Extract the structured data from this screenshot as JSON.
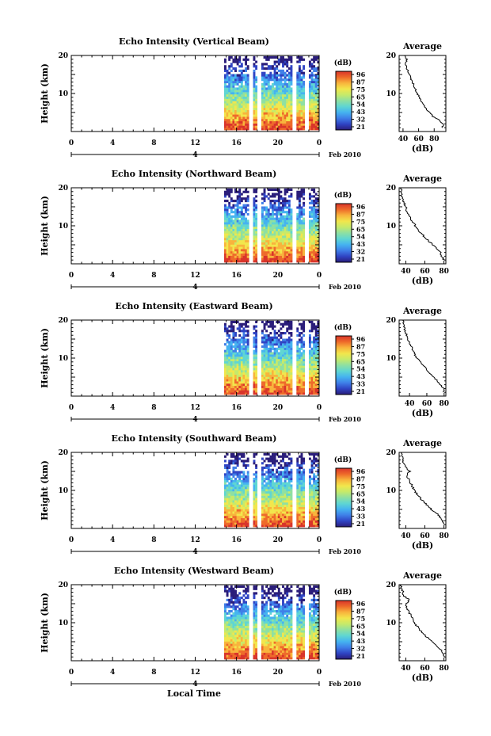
{
  "x_axis": {
    "ticks": [
      "0",
      "4",
      "8",
      "12",
      "16",
      "20",
      "0"
    ],
    "day_label": "4",
    "date_label": "Feb 2010",
    "label": "Local Time"
  },
  "colorbar": {
    "unit": "(dB)",
    "colors": [
      "#2a1d7a",
      "#2f44c4",
      "#3f7fe8",
      "#45b3f0",
      "#5fd6d2",
      "#8ee0a2",
      "#c6ea6a",
      "#f2e64c",
      "#f8b43c",
      "#ee6a2a",
      "#d9342a"
    ]
  },
  "charts": [
    {
      "title": "Echo Intensity (Vertical Beam)",
      "ylabel": "Height (km)",
      "yticks": [
        "20",
        "10"
      ],
      "colorbar_ticks": [
        "96",
        "87",
        "75",
        "65",
        "54",
        "43",
        "32",
        "21"
      ],
      "avg_title": "Average",
      "avg_xlabel": "(dB)",
      "avg_xticks": [
        "40",
        "60",
        "80"
      ],
      "avg_yticks": [
        "20",
        "10"
      ],
      "chart_data": {
        "type": "heatmap",
        "x_range_hours": [
          0,
          24
        ],
        "y_range_km": [
          0,
          20
        ],
        "data_start_hour": 14.8,
        "gaps_hours": [
          [
            17.2,
            17.6
          ],
          [
            18.0,
            18.4
          ],
          [
            21.4,
            21.8
          ],
          [
            22.6,
            23.0
          ]
        ],
        "color_range_db": [
          21,
          96
        ]
      },
      "avg_data": {
        "type": "line",
        "xlim": [
          35,
          95
        ],
        "ylim": [
          0,
          20
        ],
        "height_km": [
          1,
          2,
          3,
          4,
          5,
          6,
          7,
          8,
          9,
          10,
          11,
          12,
          13,
          14,
          15,
          16,
          17,
          18,
          19,
          20
        ],
        "db": [
          90,
          92,
          86,
          78,
          74,
          70,
          66,
          63,
          61,
          58,
          56,
          54,
          52,
          50,
          48,
          46,
          44,
          43,
          45,
          42
        ]
      }
    },
    {
      "title": "Echo Intensity (Northward Beam)",
      "ylabel": "Height (km)",
      "yticks": [
        "20",
        "10"
      ],
      "colorbar_ticks": [
        "96",
        "87",
        "75",
        "65",
        "54",
        "43",
        "32",
        "21"
      ],
      "avg_title": "Average",
      "avg_xlabel": "(dB)",
      "avg_xticks": [
        "40",
        "60",
        "80"
      ],
      "avg_yticks": [
        "20",
        "10"
      ],
      "chart_data": {
        "type": "heatmap",
        "x_range_hours": [
          0,
          24
        ],
        "y_range_km": [
          0,
          20
        ],
        "data_start_hour": 14.8,
        "gaps_hours": [
          [
            17.2,
            17.6
          ],
          [
            18.0,
            18.4
          ],
          [
            21.4,
            21.8
          ],
          [
            22.6,
            23.0
          ]
        ],
        "color_range_db": [
          21,
          96
        ]
      },
      "avg_data": {
        "type": "line",
        "xlim": [
          33,
          82
        ],
        "ylim": [
          0,
          20
        ],
        "height_km": [
          1,
          2,
          3,
          4,
          5,
          6,
          7,
          8,
          9,
          10,
          11,
          12,
          13,
          14,
          15,
          16,
          17,
          18,
          19,
          20
        ],
        "db": [
          80,
          78,
          76,
          72,
          68,
          64,
          60,
          56,
          53,
          50,
          47,
          45,
          43,
          41,
          40,
          38,
          37,
          36,
          35,
          35
        ]
      }
    },
    {
      "title": "Echo Intensity (Eastward Beam)",
      "ylabel": "Height (km)",
      "yticks": [
        "20",
        "10"
      ],
      "colorbar_ticks": [
        "96",
        "87",
        "75",
        "65",
        "54",
        "43",
        "33",
        "21"
      ],
      "avg_title": "Average",
      "avg_xlabel": "(dB)",
      "avg_xticks": [
        "40",
        "60",
        "80"
      ],
      "avg_yticks": [
        "20",
        "10"
      ],
      "chart_data": {
        "type": "heatmap",
        "x_range_hours": [
          0,
          24
        ],
        "y_range_km": [
          0,
          20
        ],
        "data_start_hour": 14.8,
        "gaps_hours": [
          [
            17.2,
            17.6
          ],
          [
            18.0,
            18.4
          ],
          [
            21.4,
            21.8
          ],
          [
            22.6,
            23.0
          ]
        ],
        "color_range_db": [
          21,
          96
        ]
      },
      "avg_data": {
        "type": "line",
        "xlim": [
          28,
          82
        ],
        "ylim": [
          0,
          20
        ],
        "height_km": [
          1,
          2,
          3,
          4,
          5,
          6,
          7,
          8,
          9,
          10,
          11,
          12,
          13,
          14,
          15,
          16,
          17,
          18,
          19,
          20
        ],
        "db": [
          80,
          79,
          76,
          72,
          68,
          64,
          60,
          56,
          52,
          49,
          46,
          44,
          42,
          40,
          38,
          37,
          35,
          34,
          33,
          32
        ]
      }
    },
    {
      "title": "Echo Intensity (Southward Beam)",
      "ylabel": "Height (km)",
      "yticks": [
        "20",
        "10"
      ],
      "colorbar_ticks": [
        "96",
        "87",
        "75",
        "65",
        "54",
        "43",
        "33",
        "21"
      ],
      "avg_title": "Average",
      "avg_xlabel": "(dB)",
      "avg_xticks": [
        "40",
        "60",
        "80"
      ],
      "avg_yticks": [
        "20",
        "10"
      ],
      "chart_data": {
        "type": "heatmap",
        "x_range_hours": [
          0,
          24
        ],
        "y_range_km": [
          0,
          20
        ],
        "data_start_hour": 14.8,
        "gaps_hours": [
          [
            17.2,
            17.6
          ],
          [
            18.0,
            18.4
          ],
          [
            21.4,
            21.8
          ],
          [
            22.6,
            23.0
          ]
        ],
        "color_range_db": [
          21,
          96
        ]
      },
      "avg_data": {
        "type": "line",
        "xlim": [
          33,
          82
        ],
        "ylim": [
          0,
          20
        ],
        "height_km": [
          1,
          2,
          3,
          4,
          5,
          6,
          7,
          8,
          9,
          10,
          11,
          12,
          13,
          14,
          15,
          16,
          17,
          18,
          19,
          20
        ],
        "db": [
          80,
          79,
          76,
          72,
          67,
          63,
          59,
          55,
          52,
          49,
          47,
          45,
          43,
          41,
          44,
          40,
          38,
          37,
          36,
          35
        ]
      }
    },
    {
      "title": "Echo Intensity (Westward Beam)",
      "ylabel": "Height (km)",
      "yticks": [
        "20",
        "10"
      ],
      "colorbar_ticks": [
        "96",
        "87",
        "75",
        "65",
        "54",
        "43",
        "32",
        "21"
      ],
      "avg_title": "Average",
      "avg_xlabel": "(dB)",
      "avg_xticks": [
        "40",
        "60",
        "80"
      ],
      "avg_yticks": [
        "20",
        "10"
      ],
      "chart_data": {
        "type": "heatmap",
        "x_range_hours": [
          0,
          24
        ],
        "y_range_km": [
          0,
          20
        ],
        "data_start_hour": 14.8,
        "gaps_hours": [
          [
            17.2,
            17.6
          ],
          [
            18.0,
            18.4
          ],
          [
            21.4,
            21.8
          ],
          [
            22.6,
            23.0
          ]
        ],
        "color_range_db": [
          21,
          96
        ]
      },
      "avg_data": {
        "type": "line",
        "xlim": [
          33,
          82
        ],
        "ylim": [
          0,
          20
        ],
        "height_km": [
          1,
          2,
          3,
          4,
          5,
          6,
          7,
          8,
          9,
          10,
          11,
          12,
          13,
          14,
          15,
          16,
          17,
          18,
          19,
          20
        ],
        "db": [
          80,
          79,
          76,
          72,
          68,
          63,
          59,
          55,
          52,
          49,
          47,
          45,
          43,
          41,
          40,
          44,
          38,
          37,
          36,
          35
        ]
      }
    }
  ]
}
